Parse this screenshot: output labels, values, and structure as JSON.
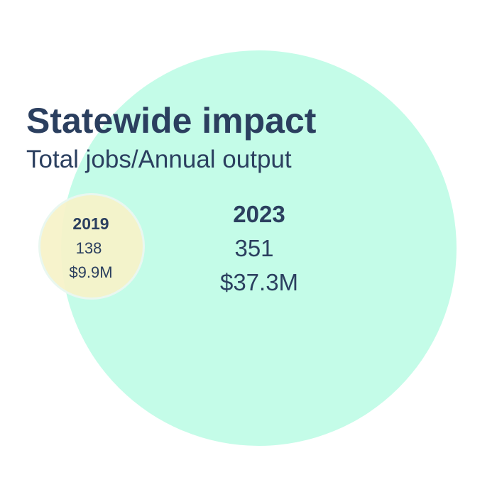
{
  "title": "Statewide impact",
  "subtitle": "Total jobs/Annual output",
  "colors": {
    "text": "#2b3f5f",
    "large_circle": "#c4fce8",
    "small_circle": "#f6f2c8"
  },
  "circles": [
    {
      "year": "2023",
      "jobs": "351",
      "output": "$37.3M"
    },
    {
      "year": "2019",
      "jobs": "138",
      "output": "$9.9M"
    }
  ]
}
